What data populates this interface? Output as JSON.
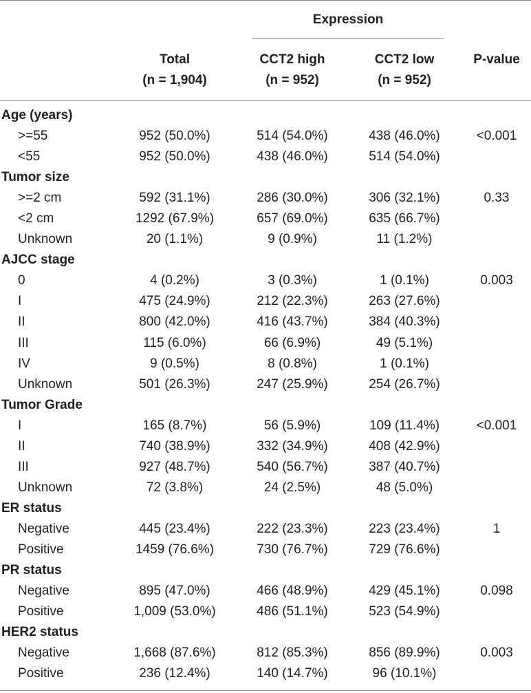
{
  "header": {
    "expression": "Expression",
    "columns": [
      {
        "line1": "Total",
        "line2": "(n = 1,904)"
      },
      {
        "line1": "CCT2 high",
        "line2": "(n = 952)"
      },
      {
        "line1": "CCT2 low",
        "line2": "(n = 952)"
      },
      {
        "line1": "P-value",
        "line2": ""
      }
    ]
  },
  "rows": [
    {
      "type": "category",
      "label": "Age (years)"
    },
    {
      "type": "item",
      "label": ">=55",
      "total": "952 (50.0%)",
      "high": "514 (54.0%)",
      "low": "438 (46.0%)",
      "p": "<0.001"
    },
    {
      "type": "item",
      "label": "<55",
      "total": "952 (50.0%)",
      "high": "438 (46.0%)",
      "low": "514 (54.0%)",
      "p": ""
    },
    {
      "type": "category",
      "label": "Tumor size"
    },
    {
      "type": "item",
      "label": ">=2 cm",
      "total": "592 (31.1%)",
      "high": "286 (30.0%)",
      "low": "306 (32.1%)",
      "p": "0.33"
    },
    {
      "type": "item",
      "label": "<2 cm",
      "total": "1292 (67.9%)",
      "high": "657 (69.0%)",
      "low": "635 (66.7%)",
      "p": ""
    },
    {
      "type": "item",
      "label": "Unknown",
      "total": "20 (1.1%)",
      "high": "9 (0.9%)",
      "low": "11 (1.2%)",
      "p": ""
    },
    {
      "type": "category",
      "label": "AJCC stage"
    },
    {
      "type": "item",
      "label": "0",
      "total": "4 (0.2%)",
      "high": "3 (0.3%)",
      "low": "1 (0.1%)",
      "p": "0.003"
    },
    {
      "type": "item",
      "label": "I",
      "total": "475 (24.9%)",
      "high": "212 (22.3%)",
      "low": "263 (27.6%)",
      "p": ""
    },
    {
      "type": "item",
      "label": "II",
      "total": "800 (42.0%)",
      "high": "416 (43.7%)",
      "low": "384 (40.3%)",
      "p": ""
    },
    {
      "type": "item",
      "label": "III",
      "total": "115 (6.0%)",
      "high": "66 (6.9%)",
      "low": "49 (5.1%)",
      "p": ""
    },
    {
      "type": "item",
      "label": "IV",
      "total": "9 (0.5%)",
      "high": "8 (0.8%)",
      "low": "1 (0.1%)",
      "p": ""
    },
    {
      "type": "item",
      "label": "Unknown",
      "total": "501 (26.3%)",
      "high": "247 (25.9%)",
      "low": "254 (26.7%)",
      "p": ""
    },
    {
      "type": "category",
      "label": "Tumor Grade"
    },
    {
      "type": "item",
      "label": "I",
      "total": "165 (8.7%)",
      "high": "56 (5.9%)",
      "low": "109 (11.4%)",
      "p": "<0.001"
    },
    {
      "type": "item",
      "label": "II",
      "total": "740 (38.9%)",
      "high": "332 (34.9%)",
      "low": "408 (42.9%)",
      "p": ""
    },
    {
      "type": "item",
      "label": "III",
      "total": "927 (48.7%)",
      "high": "540 (56.7%)",
      "low": "387 (40.7%)",
      "p": ""
    },
    {
      "type": "item",
      "label": "Unknown",
      "total": "72 (3.8%)",
      "high": "24 (2.5%)",
      "low": "48 (5.0%)",
      "p": ""
    },
    {
      "type": "category",
      "label": "ER status"
    },
    {
      "type": "item",
      "label": "Negative",
      "total": "445 (23.4%)",
      "high": "222 (23.3%)",
      "low": "223 (23.4%)",
      "p": "1"
    },
    {
      "type": "item",
      "label": "Positive",
      "total": "1459 (76.6%)",
      "high": "730 (76.7%)",
      "low": "729 (76.6%)",
      "p": ""
    },
    {
      "type": "category",
      "label": "PR status"
    },
    {
      "type": "item",
      "label": "Negative",
      "total": "895 (47.0%)",
      "high": "466 (48.9%)",
      "low": "429 (45.1%)",
      "p": "0.098"
    },
    {
      "type": "item",
      "label": "Positive",
      "total": "1,009 (53.0%)",
      "high": "486 (51.1%)",
      "low": "523 (54.9%)",
      "p": ""
    },
    {
      "type": "category",
      "label": "HER2 status"
    },
    {
      "type": "item",
      "label": "Negative",
      "total": "1,668 (87.6%)",
      "high": "812 (85.3%)",
      "low": "856 (89.9%)",
      "p": "0.003"
    },
    {
      "type": "item",
      "label": "Positive",
      "total": "236 (12.4%)",
      "high": "140 (14.7%)",
      "low": "96 (10.1%)",
      "p": ""
    }
  ]
}
